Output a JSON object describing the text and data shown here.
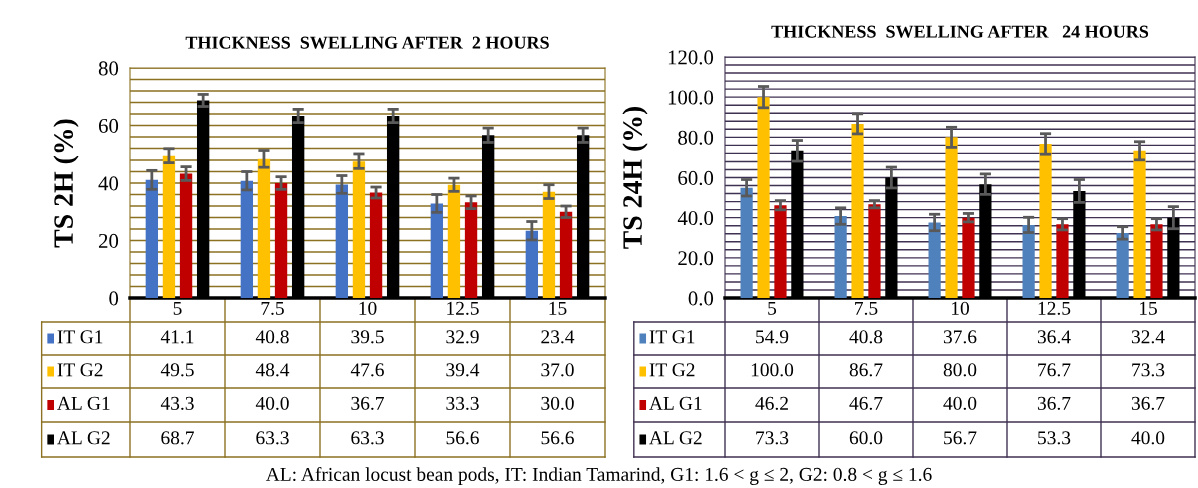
{
  "chart_data": [
    {
      "type": "bar",
      "title": "THICKNESS  SWELLING AFTER  2 HOURS",
      "ylabel": "TS 2H (%)",
      "categories": [
        "5",
        "7.5",
        "10",
        "12.5",
        "15"
      ],
      "series": [
        {
          "name": "IT G1",
          "color": "#4472c4",
          "values": [
            41.1,
            40.8,
            39.5,
            32.9,
            23.4
          ],
          "errors": [
            3.3,
            3.2,
            3.1,
            3.1,
            3.2
          ],
          "value_labels": [
            "41.1",
            "40.8",
            "39.5",
            "32.9",
            "23.4"
          ]
        },
        {
          "name": "IT G2",
          "color": "#ffc000",
          "values": [
            49.5,
            48.4,
            47.6,
            39.4,
            37.0
          ],
          "errors": [
            2.4,
            2.9,
            2.5,
            2.3,
            2.4
          ],
          "value_labels": [
            "49.5",
            "48.4",
            "47.6",
            "39.4",
            "37.0"
          ]
        },
        {
          "name": "AL G1",
          "color": "#c00000",
          "values": [
            43.3,
            40.0,
            36.7,
            33.3,
            30.0
          ],
          "errors": [
            2.4,
            2.2,
            1.9,
            2.2,
            2.0
          ],
          "value_labels": [
            "43.3",
            "40.0",
            "36.7",
            "33.3",
            "30.0"
          ]
        },
        {
          "name": "AL G2",
          "color": "#000000",
          "values": [
            68.7,
            63.3,
            63.3,
            56.6,
            56.6
          ],
          "errors": [
            2.1,
            2.3,
            2.3,
            2.5,
            2.5
          ],
          "value_labels": [
            "68.7",
            "63.3",
            "63.3",
            "56.6",
            "56.6"
          ]
        }
      ],
      "ylim": [
        0,
        80
      ],
      "yticks": [
        0,
        {
          "value": 4,
          "label": null
        },
        {
          "value": 8,
          "label": null
        },
        {
          "value": 12,
          "label": null
        },
        {
          "value": 16,
          "label": null
        },
        20,
        {
          "value": 24,
          "label": null
        },
        {
          "value": 28,
          "label": null
        },
        {
          "value": 32,
          "label": null
        },
        {
          "value": 36,
          "label": null
        },
        40,
        {
          "value": 44,
          "label": null
        },
        {
          "value": 48,
          "label": null
        },
        {
          "value": 52,
          "label": null
        },
        {
          "value": 56,
          "label": null
        },
        60,
        {
          "value": 64,
          "label": null
        },
        {
          "value": 68,
          "label": null
        },
        {
          "value": 72,
          "label": null
        },
        {
          "value": 76,
          "label": null
        },
        80
      ],
      "grid": "y",
      "legend": "bottom"
    },
    {
      "type": "bar",
      "title": "THICKNESS  SWELLING AFTER   24 HOURS",
      "ylabel": "TS 24H (%)",
      "categories": [
        "5",
        "7.5",
        "10",
        "12.5",
        "15"
      ],
      "series": [
        {
          "name": "IT G1",
          "color": "#4f81bd",
          "values": [
            54.9,
            40.8,
            37.6,
            36.4,
            32.4
          ],
          "errors": [
            4.1,
            4.1,
            4.1,
            3.8,
            3.1
          ],
          "value_labels": [
            "54.9",
            "40.8",
            "37.6",
            "36.4",
            "32.4"
          ]
        },
        {
          "name": "IT G2",
          "color": "#ffc000",
          "values": [
            100.0,
            86.7,
            80.0,
            76.7,
            73.3
          ],
          "errors": [
            5.3,
            5.0,
            5.0,
            5.1,
            4.5
          ],
          "value_labels": [
            "100.0",
            "86.7",
            "80.0",
            "76.7",
            "73.3"
          ]
        },
        {
          "name": "AL G1",
          "color": "#c00000",
          "values": [
            46.2,
            46.7,
            40.0,
            36.7,
            36.7
          ],
          "errors": [
            2.3,
            1.8,
            2.1,
            2.8,
            2.8
          ],
          "value_labels": [
            "46.2",
            "46.7",
            "40.0",
            "36.7",
            "36.7"
          ]
        },
        {
          "name": "AL G2",
          "color": "#000000",
          "values": [
            73.3,
            60.0,
            56.7,
            53.3,
            40.0
          ],
          "errors": [
            5.1,
            5.2,
            5.1,
            5.7,
            5.5
          ],
          "value_labels": [
            "73.3",
            "60.0",
            "56.7",
            "53.3",
            "40.0"
          ]
        }
      ],
      "ylim": [
        0,
        120
      ],
      "yticks": [
        {
          "value": 0,
          "label": "0.0"
        },
        {
          "value": 4,
          "label": null
        },
        {
          "value": 8,
          "label": null
        },
        {
          "value": 12,
          "label": null
        },
        {
          "value": 16,
          "label": null
        },
        {
          "value": 20,
          "label": "20.0"
        },
        {
          "value": 24,
          "label": null
        },
        {
          "value": 28,
          "label": null
        },
        {
          "value": 32,
          "label": null
        },
        {
          "value": 36,
          "label": null
        },
        {
          "value": 40,
          "label": "40.0"
        },
        {
          "value": 44,
          "label": null
        },
        {
          "value": 48,
          "label": null
        },
        {
          "value": 52,
          "label": null
        },
        {
          "value": 56,
          "label": null
        },
        {
          "value": 60,
          "label": "60.0"
        },
        {
          "value": 64,
          "label": null
        },
        {
          "value": 68,
          "label": null
        },
        {
          "value": 72,
          "label": null
        },
        {
          "value": 76,
          "label": null
        },
        {
          "value": 80,
          "label": "80.0"
        },
        {
          "value": 84,
          "label": null
        },
        {
          "value": 88,
          "label": null
        },
        {
          "value": 92,
          "label": null
        },
        {
          "value": 96,
          "label": null
        },
        {
          "value": 100,
          "label": "100.0"
        },
        {
          "value": 104,
          "label": null
        },
        {
          "value": 108,
          "label": null
        },
        {
          "value": 112,
          "label": null
        },
        {
          "value": 116,
          "label": null
        },
        {
          "value": 120,
          "label": "120.0"
        }
      ],
      "grid": "y",
      "legend": "bottom",
      "annotations": [
        "AL: African locust bean pods, IT: Indian Tamarind, G1: 1.6 < g ≤ 2, G2: 0.8 < g ≤ 1.6"
      ]
    }
  ]
}
